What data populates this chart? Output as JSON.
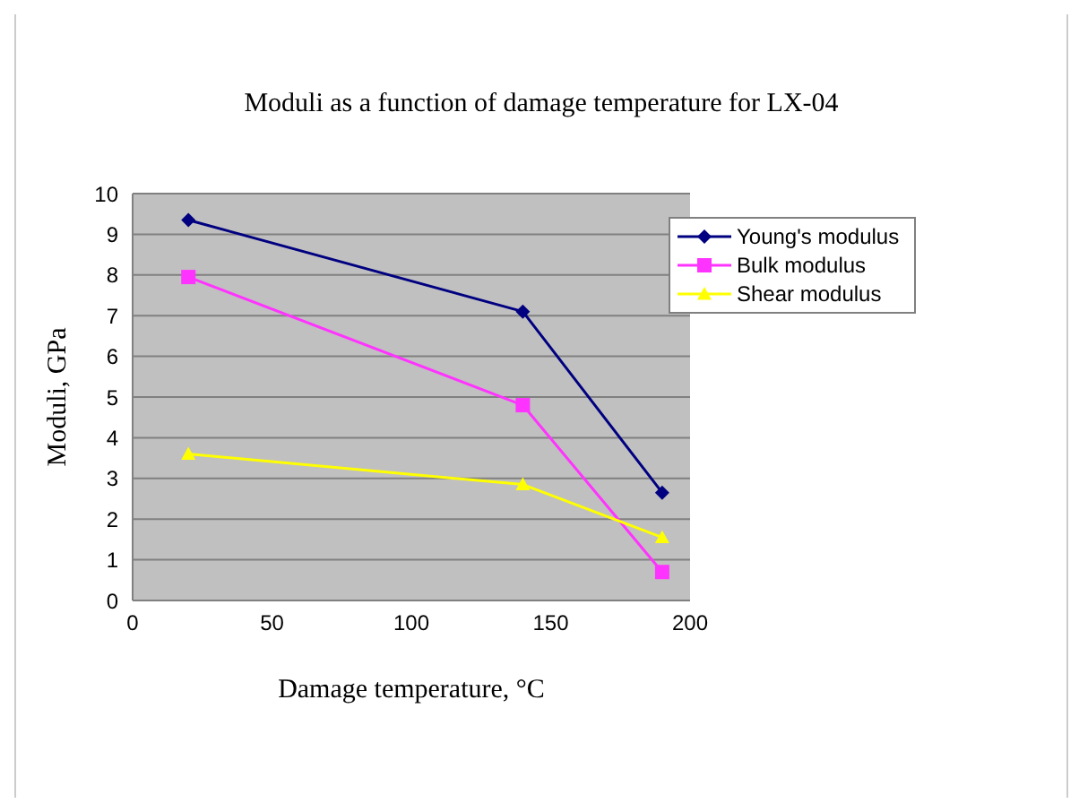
{
  "chart_data": {
    "type": "line",
    "title": "Moduli as a function of damage temperature for LX-04",
    "xlabel": "Damage temperature, °C",
    "ylabel": "Moduli, GPa",
    "x": [
      20,
      140,
      190
    ],
    "series": [
      {
        "name": "Young's modulus",
        "color": "#000080",
        "values": [
          9.35,
          7.1,
          2.65
        ],
        "marker": "diamond"
      },
      {
        "name": "Bulk modulus",
        "color": "#ff33ff",
        "values": [
          7.95,
          4.8,
          0.7
        ],
        "marker": "square"
      },
      {
        "name": "Shear modulus",
        "color": "#ffff00",
        "values": [
          3.6,
          2.85,
          1.55
        ],
        "marker": "triangle"
      }
    ],
    "xlim": [
      0,
      200
    ],
    "xticks": [
      0,
      50,
      100,
      150,
      200
    ],
    "ylim": [
      0,
      10
    ],
    "yticks": [
      0,
      1,
      2,
      3,
      4,
      5,
      6,
      7,
      8,
      9,
      10
    ],
    "grid": "y",
    "legend": "top right",
    "line_style": "solid"
  }
}
